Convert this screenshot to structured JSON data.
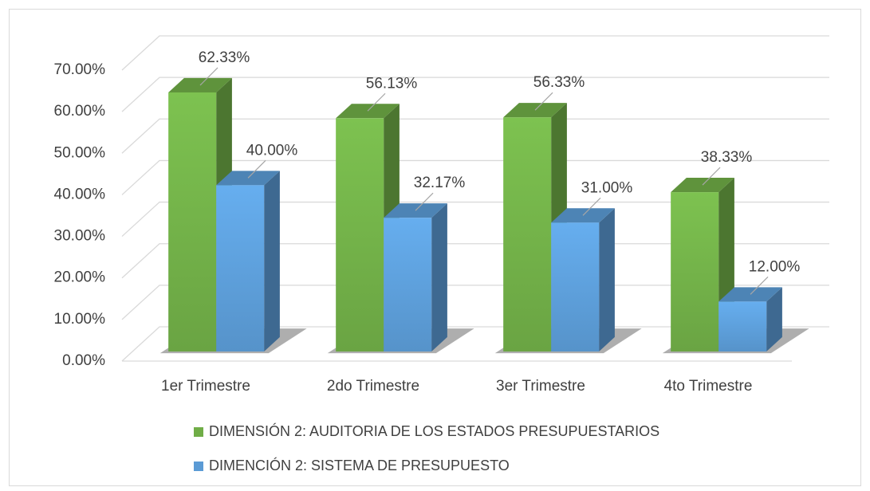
{
  "chart_data": {
    "type": "bar3d",
    "categories": [
      "1er Trimestre",
      "2do Trimestre",
      "3er Trimestre",
      "4to Trimestre"
    ],
    "series": [
      {
        "name": "DIMENSIÓN 2: AUDITORIA DE LOS ESTADOS PRESUPUESTARIOS",
        "color": "#70ad47",
        "values": [
          62.33,
          56.13,
          56.33,
          38.33
        ],
        "value_labels": [
          "62.33%",
          "56.13%",
          "56.33%",
          "38.33%"
        ]
      },
      {
        "name": "DIMENCIÓN 2: SISTEMA DE PRESUPUESTO",
        "color": "#5b9bd5",
        "values": [
          40,
          32.17,
          31,
          12
        ],
        "value_labels": [
          "40.00%",
          "32.17%",
          "31.00%",
          "12.00%"
        ]
      }
    ],
    "ylim": [
      0,
      70
    ],
    "yticks": [
      {
        "value": 0,
        "label": "0.00%"
      },
      {
        "value": 10,
        "label": "10.00%"
      },
      {
        "value": 20,
        "label": "20.00%"
      },
      {
        "value": 30,
        "label": "30.00%"
      },
      {
        "value": 40,
        "label": "40.00%"
      },
      {
        "value": 50,
        "label": "50.00%"
      },
      {
        "value": 60,
        "label": "60.00%"
      },
      {
        "value": 70,
        "label": "70.00%"
      }
    ],
    "grid": true,
    "legend": "bottom"
  }
}
